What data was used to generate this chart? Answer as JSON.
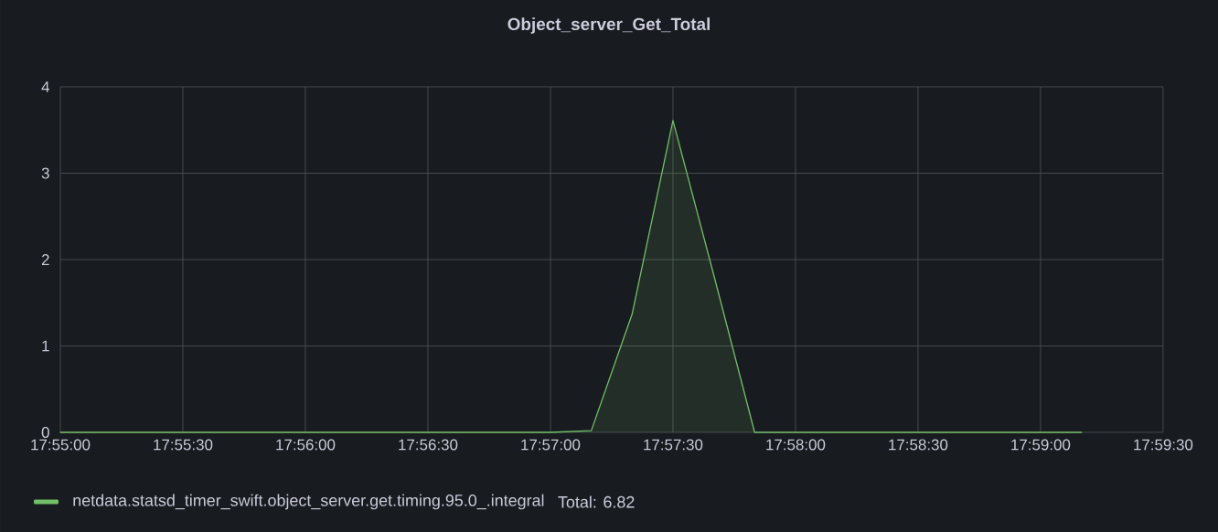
{
  "chart_data": {
    "type": "area",
    "title": "Object_server_Get_Total",
    "x": [
      17.916667,
      17.919444,
      17.922222,
      17.925,
      17.927778,
      17.930556,
      17.933333,
      17.936111,
      17.938889,
      17.941667,
      17.944444,
      17.947222,
      17.95,
      17.952778,
      17.955556,
      17.958333,
      17.961111,
      17.963889,
      17.966667,
      17.969444,
      17.972222,
      17.975,
      17.977778,
      17.980556,
      17.983333,
      17.986111
    ],
    "series": [
      {
        "name": "netdata.statsd_timer_swift.object_server.get.timing.95.0_.integral",
        "color": "#73bf69",
        "values": [
          0,
          0,
          0,
          0,
          0,
          0,
          0,
          0,
          0,
          0,
          0,
          0,
          0,
          0.02,
          1.37,
          3.61,
          1.82,
          0,
          0,
          0,
          0,
          0,
          0,
          0,
          0,
          0
        ]
      }
    ],
    "xlim": [
      17.916667,
      17.991667
    ],
    "xticks": [
      {
        "value": 17.916667,
        "label": "17:55:00"
      },
      {
        "value": 17.925,
        "label": "17:55:30"
      },
      {
        "value": 17.933333,
        "label": "17:56:00"
      },
      {
        "value": 17.941667,
        "label": "17:56:30"
      },
      {
        "value": 17.95,
        "label": "17:57:00"
      },
      {
        "value": 17.958333,
        "label": "17:57:30"
      },
      {
        "value": 17.966667,
        "label": "17:58:00"
      },
      {
        "value": 17.975,
        "label": "17:58:30"
      },
      {
        "value": 17.983333,
        "label": "17:59:00"
      },
      {
        "value": 17.991667,
        "label": "17:59:30"
      }
    ],
    "ylim": [
      0,
      4
    ],
    "yticks": [
      0,
      1,
      2,
      3,
      4
    ],
    "grid": true,
    "legend": "bottom",
    "annotations": [
      "Total: 6.82"
    ]
  }
}
